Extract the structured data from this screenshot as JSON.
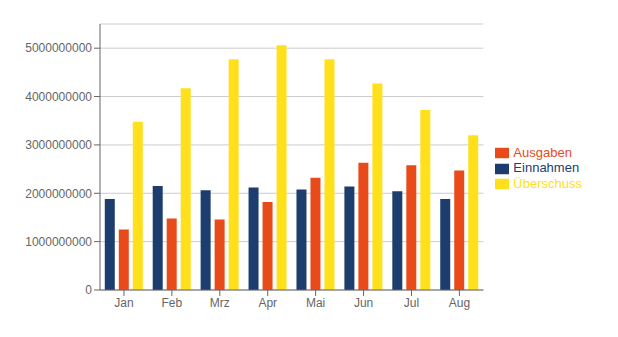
{
  "chart_data": {
    "type": "bar",
    "categories": [
      "Jan",
      "Feb",
      "Mrz",
      "Apr",
      "Mai",
      "Jun",
      "Jul",
      "Aug"
    ],
    "series": [
      {
        "name": "Einnahmen",
        "color": "#1C3D6E",
        "values": [
          1880000000,
          2150000000,
          2060000000,
          2120000000,
          2080000000,
          2140000000,
          2040000000,
          1880000000
        ]
      },
      {
        "name": "Ausgaben",
        "color": "#E84A1A",
        "values": [
          1250000000,
          1480000000,
          1460000000,
          1820000000,
          2320000000,
          2630000000,
          2580000000,
          2470000000
        ]
      },
      {
        "name": "Überschuss",
        "color": "#FFE01A",
        "values": [
          3480000000,
          4170000000,
          4770000000,
          5060000000,
          4770000000,
          4270000000,
          3720000000,
          3200000000
        ]
      }
    ],
    "ylim": [
      0,
      5500000000
    ],
    "yticks": [
      0,
      1000000000,
      2000000000,
      3000000000,
      4000000000,
      5000000000
    ],
    "grid": true,
    "legend": "right"
  }
}
